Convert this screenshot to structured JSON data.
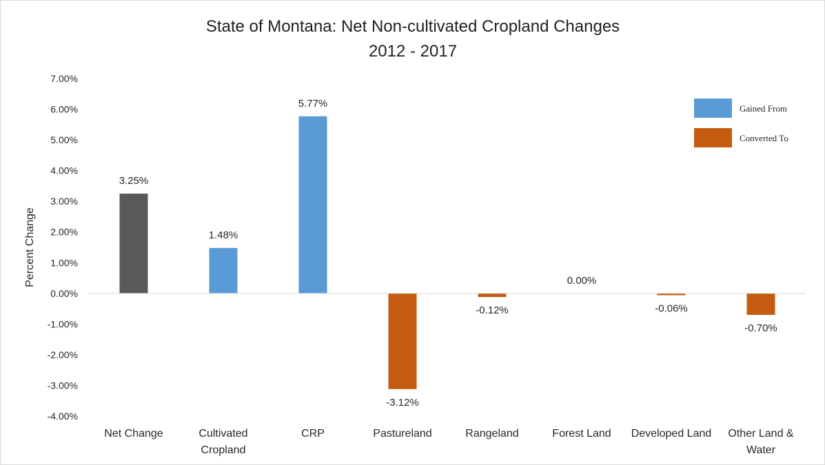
{
  "chart_data": {
    "type": "bar",
    "title": "State of Montana: Net Non-cultivated Cropland Changes",
    "subtitle": "2012 - 2017",
    "xlabel": "",
    "ylabel": "Percent Change",
    "ylim": [
      -4,
      7
    ],
    "ytick_step": 1,
    "ytick_labels": [
      "7.00%",
      "6.00%",
      "5.00%",
      "4.00%",
      "3.00%",
      "2.00%",
      "1.00%",
      "0.00%",
      "-1.00%",
      "-2.00%",
      "-3.00%",
      "-4.00%"
    ],
    "categories": [
      [
        "Net Change"
      ],
      [
        "Cultivated",
        "Cropland"
      ],
      [
        "CRP"
      ],
      [
        "Pastureland"
      ],
      [
        "Rangeland"
      ],
      [
        "Forest Land"
      ],
      [
        "Developed Land"
      ],
      [
        "Other Land &",
        "Water"
      ]
    ],
    "values": [
      3.25,
      1.48,
      5.77,
      -3.12,
      -0.12,
      0.0,
      -0.06,
      -0.7
    ],
    "value_labels": [
      "3.25%",
      "1.48%",
      "5.77%",
      "-3.12%",
      "-0.12%",
      "0.00%",
      "-0.06%",
      "-0.70%"
    ],
    "bar_groups": [
      "net",
      "gained",
      "gained",
      "converted",
      "converted",
      "converted",
      "converted",
      "converted"
    ],
    "grid": false,
    "legend": {
      "placement": "top-right",
      "entries": [
        {
          "key": "gained",
          "label": "Gained From",
          "color": "#5b9bd5"
        },
        {
          "key": "converted",
          "label": "Converted To",
          "color": "#c55a11"
        }
      ]
    },
    "colors": {
      "net": "#595959",
      "gained": "#5b9bd5",
      "converted": "#c55a11",
      "axis": "#d9d9d9"
    }
  }
}
